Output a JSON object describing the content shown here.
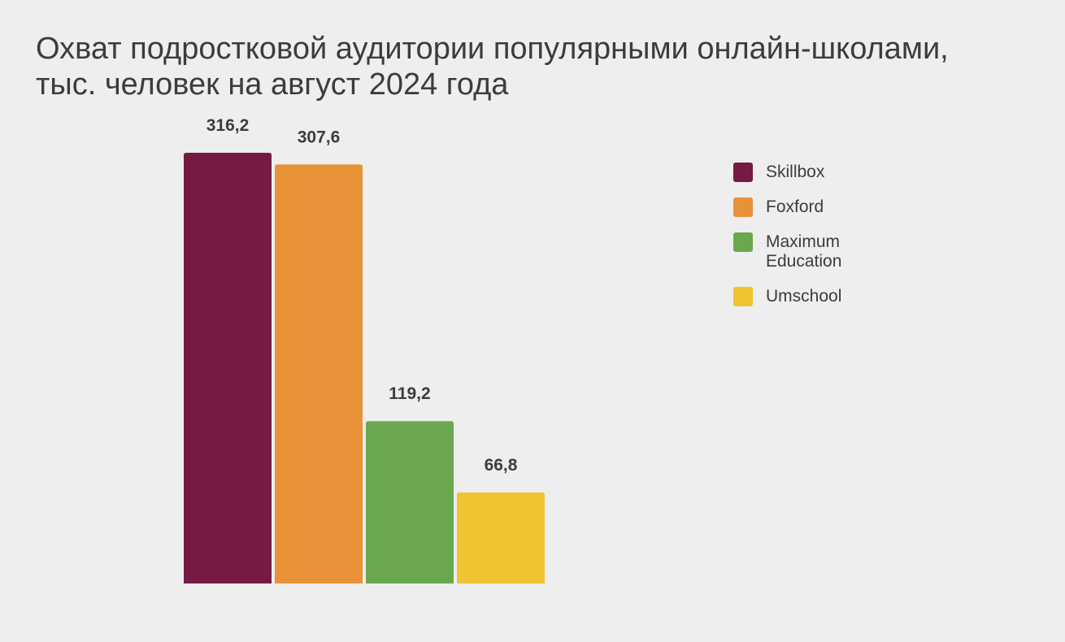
{
  "title": {
    "line1": "Охват подростковой аудитории популярными онлайн-школами,",
    "line2": "тыс. человек на август 2024 года"
  },
  "chart_data": {
    "type": "bar",
    "title": "Охват подростковой аудитории популярными онлайн-школами, тыс. человек на август 2024 года",
    "categories": [
      "Skillbox",
      "Foxford",
      "Maximum Education",
      "Umschool"
    ],
    "values": [
      316.2,
      307.6,
      119.2,
      66.8
    ],
    "value_labels": [
      "316,2",
      "307,6",
      "119,2",
      "66,8"
    ],
    "colors": [
      "#751a43",
      "#e89238",
      "#6aa84f",
      "#f0c332"
    ],
    "ylim": [
      0,
      316.2
    ],
    "grid": false,
    "legend": "right"
  },
  "legend": {
    "items": [
      {
        "label": "Skillbox",
        "color": "#751a43"
      },
      {
        "label": "Foxford",
        "color": "#e89238"
      },
      {
        "label": "Maximum Education",
        "color": "#6aa84f"
      },
      {
        "label": "Umschool",
        "color": "#f0c332"
      }
    ]
  }
}
